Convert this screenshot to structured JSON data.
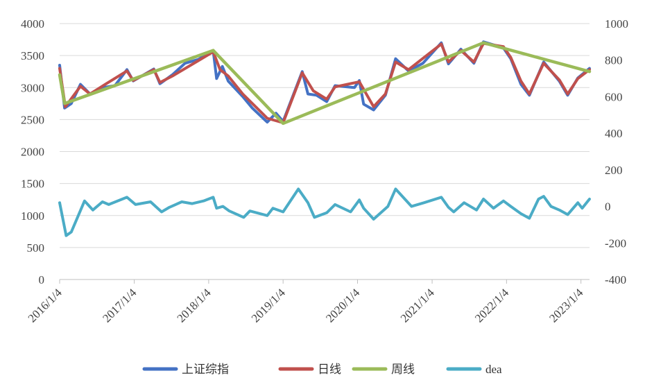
{
  "chart_data": {
    "type": "line",
    "x_ticks": [
      "2016/1/4",
      "2017/1/4",
      "2018/1/4",
      "2019/1/4",
      "2020/1/4",
      "2021/1/4",
      "2022/1/4",
      "2023/1/4"
    ],
    "x_range": [
      "2016/1/4",
      "2023/2/15"
    ],
    "y_left": {
      "ticks": [
        0,
        500,
        1000,
        1500,
        2000,
        2500,
        3000,
        3500,
        4000
      ],
      "range": [
        0,
        4000
      ]
    },
    "y_right": {
      "ticks": [
        -400,
        -200,
        0,
        200,
        400,
        600,
        800,
        1000
      ],
      "range": [
        -400,
        1000
      ]
    },
    "grid": "horizontal",
    "legend_position": "bottom",
    "series": [
      {
        "name": "上证综指",
        "axis": "left",
        "color": "#4472C4",
        "points": [
          [
            "2016/1/4",
            3350
          ],
          [
            "2016/1/28",
            2680
          ],
          [
            "2016/3/1",
            2750
          ],
          [
            "2016/4/15",
            3050
          ],
          [
            "2016/6/1",
            2900
          ],
          [
            "2016/8/1",
            3000
          ],
          [
            "2016/10/1",
            3030
          ],
          [
            "2016/11/29",
            3280
          ],
          [
            "2016/12/30",
            3105
          ],
          [
            "2017/4/10",
            3290
          ],
          [
            "2017/5/10",
            3060
          ],
          [
            "2017/7/10",
            3200
          ],
          [
            "2017/9/10",
            3380
          ],
          [
            "2017/11/14",
            3440
          ],
          [
            "2018/1/26",
            3580
          ],
          [
            "2018/2/12",
            3140
          ],
          [
            "2018/3/12",
            3330
          ],
          [
            "2018/4/10",
            3100
          ],
          [
            "2018/6/20",
            2860
          ],
          [
            "2018/8/6",
            2680
          ],
          [
            "2018/10/18",
            2460
          ],
          [
            "2018/11/30",
            2600
          ],
          [
            "2019/1/4",
            2470
          ],
          [
            "2019/4/8",
            3250
          ],
          [
            "2019/5/6",
            2900
          ],
          [
            "2019/6/17",
            2880
          ],
          [
            "2019/8/6",
            2780
          ],
          [
            "2019/9/16",
            3030
          ],
          [
            "2019/12/20",
            3000
          ],
          [
            "2020/1/13",
            3110
          ],
          [
            "2020/2/3",
            2740
          ],
          [
            "2020/3/23",
            2650
          ],
          [
            "2020/5/20",
            2880
          ],
          [
            "2020/7/9",
            3450
          ],
          [
            "2020/9/10",
            3260
          ],
          [
            "2020/11/20",
            3380
          ],
          [
            "2021/2/18",
            3700
          ],
          [
            "2021/3/25",
            3370
          ],
          [
            "2021/5/25",
            3600
          ],
          [
            "2021/7/28",
            3380
          ],
          [
            "2021/9/13",
            3715
          ],
          [
            "2021/12/20",
            3620
          ],
          [
            "2022/1/25",
            3450
          ],
          [
            "2022/3/16",
            3050
          ],
          [
            "2022/4/26",
            2880
          ],
          [
            "2022/7/5",
            3400
          ],
          [
            "2022/9/20",
            3100
          ],
          [
            "2022/10/31",
            2880
          ],
          [
            "2022/12/20",
            3150
          ],
          [
            "2023/2/15",
            3300
          ]
        ]
      },
      {
        "name": "日线",
        "axis": "left",
        "color": "#C0504D",
        "points": [
          [
            "2016/1/4",
            3300
          ],
          [
            "2016/2/1",
            2700
          ],
          [
            "2016/4/15",
            3020
          ],
          [
            "2016/6/1",
            2900
          ],
          [
            "2016/8/15",
            3050
          ],
          [
            "2016/11/29",
            3260
          ],
          [
            "2016/12/30",
            3110
          ],
          [
            "2017/4/10",
            3280
          ],
          [
            "2017/5/10",
            3080
          ],
          [
            "2017/7/10",
            3180
          ],
          [
            "2017/11/14",
            3420
          ],
          [
            "2018/1/26",
            3560
          ],
          [
            "2018/3/1",
            3280
          ],
          [
            "2018/4/10",
            3180
          ],
          [
            "2018/6/20",
            2900
          ],
          [
            "2018/10/18",
            2520
          ],
          [
            "2019/1/4",
            2450
          ],
          [
            "2019/4/8",
            3230
          ],
          [
            "2019/6/1",
            2950
          ],
          [
            "2019/8/6",
            2820
          ],
          [
            "2019/9/16",
            3010
          ],
          [
            "2020/1/13",
            3090
          ],
          [
            "2020/3/23",
            2700
          ],
          [
            "2020/5/20",
            2900
          ],
          [
            "2020/7/9",
            3400
          ],
          [
            "2020/9/10",
            3280
          ],
          [
            "2021/2/18",
            3680
          ],
          [
            "2021/3/25",
            3400
          ],
          [
            "2021/5/25",
            3580
          ],
          [
            "2021/7/28",
            3400
          ],
          [
            "2021/9/13",
            3690
          ],
          [
            "2021/12/20",
            3640
          ],
          [
            "2022/1/25",
            3470
          ],
          [
            "2022/3/16",
            3100
          ],
          [
            "2022/4/26",
            2900
          ],
          [
            "2022/7/5",
            3380
          ],
          [
            "2022/9/20",
            3120
          ],
          [
            "2022/10/31",
            2900
          ],
          [
            "2022/12/20",
            3140
          ],
          [
            "2023/2/15",
            3280
          ]
        ]
      },
      {
        "name": "周线",
        "axis": "left",
        "color": "#9BBB59",
        "points": [
          [
            "2016/1/4",
            3200
          ],
          [
            "2016/1/28",
            2750
          ],
          [
            "2018/1/26",
            3580
          ],
          [
            "2019/1/4",
            2440
          ],
          [
            "2021/9/13",
            3700
          ],
          [
            "2023/2/15",
            3250
          ]
        ]
      },
      {
        "name": "dea",
        "axis": "right",
        "color": "#4BACC6",
        "points": [
          [
            "2016/1/4",
            20
          ],
          [
            "2016/2/5",
            -160
          ],
          [
            "2016/3/1",
            -140
          ],
          [
            "2016/5/5",
            30
          ],
          [
            "2016/6/15",
            -20
          ],
          [
            "2016/8/1",
            25
          ],
          [
            "2016/9/1",
            10
          ],
          [
            "2016/11/29",
            50
          ],
          [
            "2017/1/10",
            10
          ],
          [
            "2017/3/25",
            25
          ],
          [
            "2017/5/18",
            -30
          ],
          [
            "2017/6/25",
            -5
          ],
          [
            "2017/8/25",
            25
          ],
          [
            "2017/10/15",
            15
          ],
          [
            "2017/12/10",
            30
          ],
          [
            "2018/1/26",
            50
          ],
          [
            "2018/2/12",
            -10
          ],
          [
            "2018/3/15",
            0
          ],
          [
            "2018/4/15",
            -25
          ],
          [
            "2018/6/25",
            -60
          ],
          [
            "2018/7/25",
            -25
          ],
          [
            "2018/10/18",
            -50
          ],
          [
            "2018/11/15",
            -10
          ],
          [
            "2019/1/4",
            -30
          ],
          [
            "2019/3/20",
            95
          ],
          [
            "2019/5/6",
            20
          ],
          [
            "2019/6/7",
            -60
          ],
          [
            "2019/8/6",
            -35
          ],
          [
            "2019/9/16",
            10
          ],
          [
            "2019/12/1",
            -30
          ],
          [
            "2020/1/13",
            35
          ],
          [
            "2020/2/3",
            -10
          ],
          [
            "2020/3/23",
            -70
          ],
          [
            "2020/6/1",
            0
          ],
          [
            "2020/7/9",
            95
          ],
          [
            "2020/9/25",
            0
          ],
          [
            "2020/11/25",
            20
          ],
          [
            "2021/2/18",
            50
          ],
          [
            "2021/3/25",
            -5
          ],
          [
            "2021/4/20",
            -30
          ],
          [
            "2021/6/10",
            20
          ],
          [
            "2021/8/10",
            -20
          ],
          [
            "2021/9/13",
            40
          ],
          [
            "2021/11/1",
            -10
          ],
          [
            "2021/12/20",
            30
          ],
          [
            "2022/1/25",
            0
          ],
          [
            "2022/3/16",
            -40
          ],
          [
            "2022/4/26",
            -65
          ],
          [
            "2022/6/10",
            40
          ],
          [
            "2022/7/5",
            55
          ],
          [
            "2022/8/10",
            0
          ],
          [
            "2022/9/20",
            -20
          ],
          [
            "2022/10/31",
            -45
          ],
          [
            "2022/12/20",
            20
          ],
          [
            "2023/1/10",
            -10
          ],
          [
            "2023/2/15",
            40
          ]
        ]
      }
    ]
  },
  "legend": {
    "items": [
      {
        "label": "上证综指",
        "color": "#4472C4"
      },
      {
        "label": "日线",
        "color": "#C0504D"
      },
      {
        "label": "周线",
        "color": "#9BBB59"
      },
      {
        "label": "dea",
        "color": "#4BACC6"
      }
    ]
  }
}
